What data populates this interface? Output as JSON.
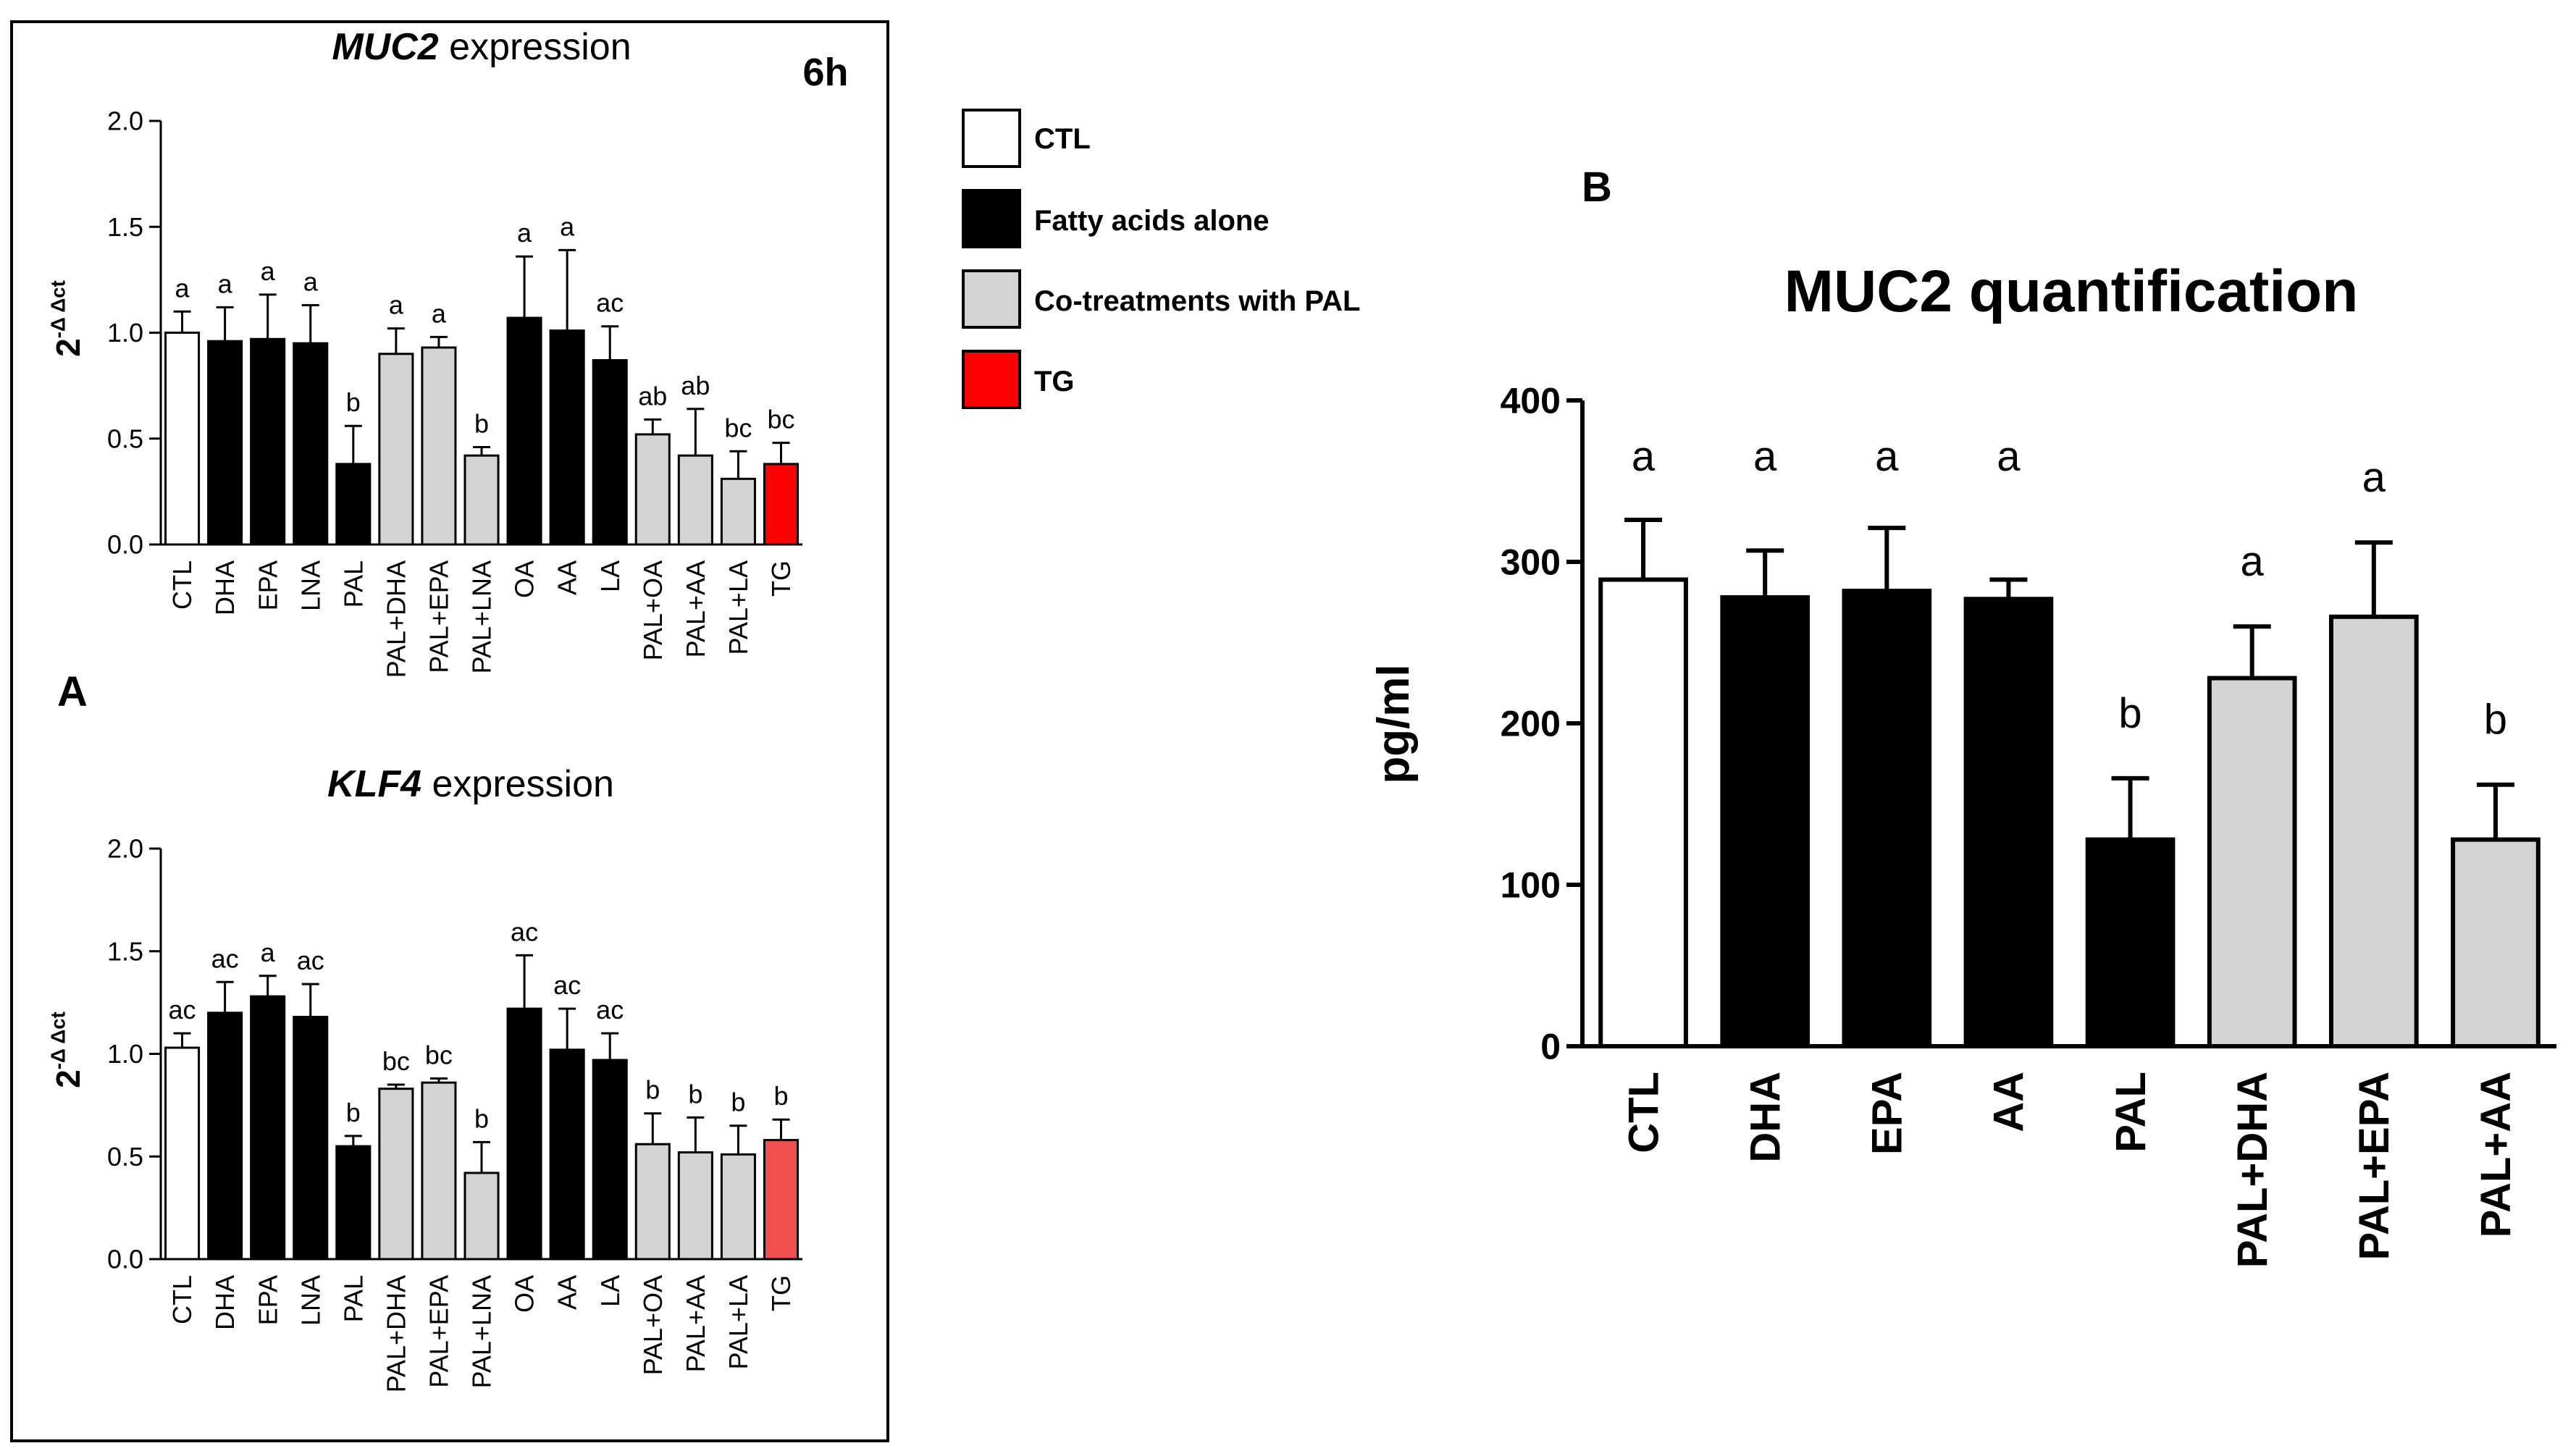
{
  "panel_a": {
    "letter": "A",
    "timepoint": "6h"
  },
  "panel_b": {
    "letter": "B"
  },
  "legend": {
    "items": [
      {
        "label": "CTL",
        "color": "#ffffff"
      },
      {
        "label": "Fatty acids alone",
        "color": "#000000"
      },
      {
        "label": "Co-treatments with PAL",
        "color": "#d3d3d3"
      },
      {
        "label": "TG",
        "color": "#ff0000"
      }
    ]
  },
  "colors": {
    "ctl": "#ffffff",
    "fa": "#000000",
    "co": "#d3d3d3",
    "tg": "#ff0000",
    "tg_light": "#f05050"
  },
  "chart_data": [
    {
      "type": "bar",
      "title_italic": "MUC2",
      "title_rest": " expression",
      "ylabel": "2",
      "ylabel_sup": "-Δ Δct",
      "ylim": [
        0,
        2.0
      ],
      "yticks": [
        "0.0",
        "0.5",
        "1.0",
        "1.5",
        "2.0"
      ],
      "categories": [
        "CTL",
        "DHA",
        "EPA",
        "LNA",
        "PAL",
        "PAL+DHA",
        "PAL+EPA",
        "PAL+LNA",
        "OA",
        "AA",
        "LA",
        "PAL+OA",
        "PAL+AA",
        "PAL+LA",
        "TG"
      ],
      "groups": [
        "ctl",
        "fa",
        "fa",
        "fa",
        "fa",
        "co",
        "co",
        "co",
        "fa",
        "fa",
        "fa",
        "co",
        "co",
        "co",
        "tg"
      ],
      "values": [
        1.0,
        0.96,
        0.97,
        0.95,
        0.38,
        0.9,
        0.93,
        0.42,
        1.07,
        1.01,
        0.87,
        0.52,
        0.42,
        0.31,
        0.38
      ],
      "errors": [
        0.1,
        0.16,
        0.21,
        0.18,
        0.18,
        0.12,
        0.05,
        0.04,
        0.29,
        0.38,
        0.16,
        0.07,
        0.22,
        0.13,
        0.1
      ],
      "letters": [
        "a",
        "a",
        "a",
        "a",
        "b",
        "a",
        "a",
        "b",
        "a",
        "a",
        "ac",
        "ab",
        "ab",
        "bc",
        "bc"
      ]
    },
    {
      "type": "bar",
      "title_italic": "KLF4",
      "title_rest": " expression",
      "ylabel": "2",
      "ylabel_sup": "-Δ Δct",
      "ylim": [
        0,
        2.0
      ],
      "yticks": [
        "0.0",
        "0.5",
        "1.0",
        "1.5",
        "2.0"
      ],
      "categories": [
        "CTL",
        "DHA",
        "EPA",
        "LNA",
        "PAL",
        "PAL+DHA",
        "PAL+EPA",
        "PAL+LNA",
        "OA",
        "AA",
        "LA",
        "PAL+OA",
        "PAL+AA",
        "PAL+LA",
        "TG"
      ],
      "groups": [
        "ctl",
        "fa",
        "fa",
        "fa",
        "fa",
        "co",
        "co",
        "co",
        "fa",
        "fa",
        "fa",
        "co",
        "co",
        "co",
        "tg_light"
      ],
      "values": [
        1.03,
        1.2,
        1.28,
        1.18,
        0.55,
        0.83,
        0.86,
        0.42,
        1.22,
        1.02,
        0.97,
        0.56,
        0.52,
        0.51,
        0.58
      ],
      "errors": [
        0.07,
        0.15,
        0.1,
        0.16,
        0.05,
        0.02,
        0.02,
        0.15,
        0.26,
        0.2,
        0.13,
        0.15,
        0.17,
        0.14,
        0.1
      ],
      "letters": [
        "ac",
        "ac",
        "a",
        "ac",
        "b",
        "bc",
        "bc",
        "b",
        "ac",
        "ac",
        "ac",
        "b",
        "b",
        "b",
        "b"
      ]
    },
    {
      "type": "bar",
      "title": "MUC2 quantification",
      "ylabel": "pg/ml",
      "ylim": [
        0,
        400
      ],
      "yticks": [
        "0",
        "100",
        "200",
        "300",
        "400"
      ],
      "categories": [
        "CTL",
        "DHA",
        "EPA",
        "AA",
        "PAL",
        "PAL+DHA",
        "PAL+EPA",
        "PAL+AA"
      ],
      "groups": [
        "ctl",
        "fa",
        "fa",
        "fa",
        "fa",
        "co",
        "co",
        "co"
      ],
      "values": [
        289,
        278,
        282,
        277,
        128,
        228,
        266,
        128
      ],
      "errors": [
        37,
        29,
        39,
        12,
        38,
        32,
        46,
        34
      ],
      "letters": [
        "a",
        "a",
        "a",
        "a",
        "b",
        "a",
        "a",
        "b"
      ]
    }
  ]
}
